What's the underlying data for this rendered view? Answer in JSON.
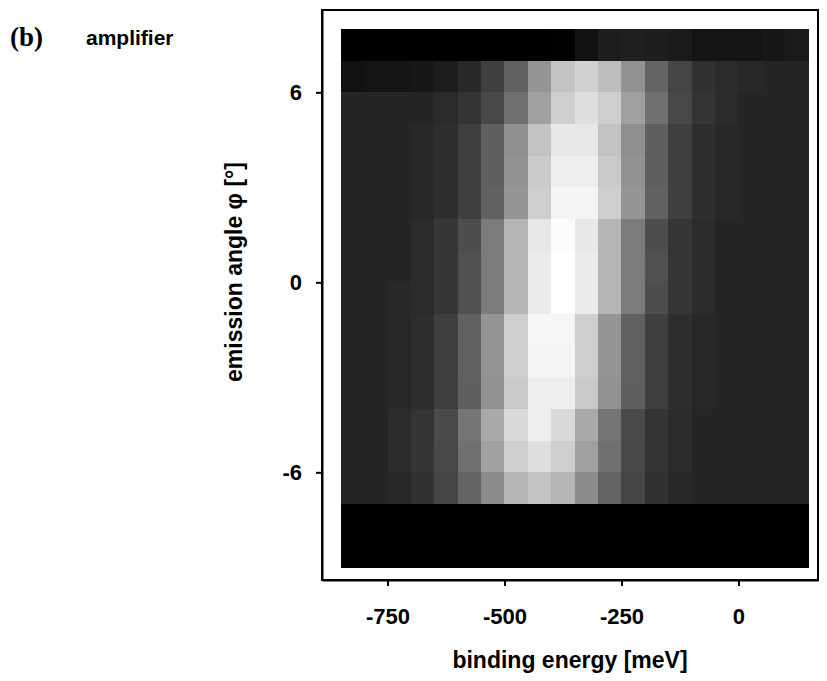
{
  "chart_data": {
    "type": "heatmap",
    "panel_label": "(b)",
    "title": "amplifier",
    "x_label": "binding energy [meV]",
    "y_label": "emission angle φ [°]",
    "xlim": [
      -890,
      170
    ],
    "ylim": [
      -9.4,
      8.6
    ],
    "xticks": [
      -750,
      -500,
      -250,
      0
    ],
    "yticks": [
      -6,
      0,
      6
    ],
    "grid": false,
    "x": [
      -825,
      -775,
      -725,
      -675,
      -625,
      -575,
      -525,
      -475,
      -425,
      -375,
      -325,
      -275,
      -225,
      -175,
      -125,
      -75,
      -25,
      25,
      75,
      125
    ],
    "y": [
      7.5,
      6.5,
      5.5,
      4.5,
      3.5,
      2.5,
      1.5,
      0.5,
      -0.5,
      -1.5,
      -2.5,
      -3.5,
      -4.5,
      -5.5,
      -6.5,
      -7.5,
      -8.5
    ],
    "z": [
      [
        5,
        5,
        5,
        5,
        5,
        5,
        5,
        5,
        5,
        6,
        11,
        15,
        16,
        15,
        14,
        12,
        12,
        12,
        13,
        14
      ],
      [
        11,
        12,
        12,
        13,
        15,
        19,
        27,
        39,
        57,
        73,
        78,
        71,
        56,
        40,
        29,
        22,
        20,
        19,
        18,
        18
      ],
      [
        18,
        18,
        18,
        18,
        20,
        23,
        30,
        44,
        61,
        77,
        83,
        77,
        61,
        44,
        30,
        23,
        20,
        18,
        18,
        18
      ],
      [
        18,
        18,
        18,
        19,
        21,
        27,
        38,
        55,
        73,
        86,
        86,
        73,
        55,
        38,
        27,
        21,
        19,
        18,
        18,
        18
      ],
      [
        18,
        18,
        18,
        19,
        21,
        27,
        38,
        56,
        75,
        88,
        88,
        75,
        56,
        38,
        27,
        21,
        19,
        18,
        18,
        18
      ],
      [
        18,
        18,
        18,
        19,
        21,
        27,
        39,
        57,
        77,
        90,
        90,
        77,
        57,
        39,
        27,
        21,
        19,
        18,
        18,
        18
      ],
      [
        18,
        18,
        18,
        20,
        24,
        32,
        48,
        68,
        86,
        93,
        86,
        68,
        48,
        32,
        24,
        20,
        18,
        18,
        18,
        18
      ],
      [
        18,
        18,
        18,
        20,
        24,
        33,
        48,
        68,
        87,
        94,
        87,
        68,
        48,
        33,
        24,
        20,
        18,
        18,
        18,
        18
      ],
      [
        18,
        18,
        19,
        20,
        24,
        33,
        48,
        69,
        87,
        94,
        87,
        68,
        48,
        32,
        24,
        20,
        18,
        18,
        18,
        18
      ],
      [
        18,
        18,
        19,
        21,
        27,
        39,
        57,
        77,
        91,
        91,
        77,
        57,
        39,
        27,
        21,
        19,
        18,
        18,
        18,
        18
      ],
      [
        18,
        18,
        19,
        21,
        27,
        39,
        57,
        77,
        90,
        90,
        77,
        57,
        39,
        27,
        21,
        19,
        18,
        18,
        18,
        18
      ],
      [
        18,
        18,
        19,
        21,
        27,
        38,
        56,
        75,
        88,
        88,
        75,
        56,
        38,
        27,
        21,
        19,
        18,
        18,
        18,
        18
      ],
      [
        18,
        18,
        20,
        23,
        31,
        46,
        64,
        81,
        88,
        81,
        64,
        46,
        31,
        23,
        20,
        18,
        18,
        18,
        18,
        18
      ],
      [
        18,
        18,
        20,
        23,
        30,
        44,
        61,
        77,
        83,
        77,
        61,
        44,
        30,
        23,
        20,
        18,
        18,
        18,
        18,
        18
      ],
      [
        18,
        18,
        19,
        22,
        29,
        40,
        54,
        68,
        73,
        68,
        54,
        40,
        29,
        22,
        19,
        18,
        18,
        18,
        18,
        18
      ],
      [
        5,
        5,
        5,
        5,
        5,
        5,
        5,
        5,
        5,
        5,
        5,
        5,
        5,
        5,
        5,
        5,
        5,
        5,
        5,
        5
      ],
      [
        5,
        5,
        5,
        5,
        5,
        5,
        5,
        5,
        5,
        5,
        5,
        5,
        5,
        5,
        5,
        5,
        5,
        5,
        5,
        5
      ]
    ]
  }
}
